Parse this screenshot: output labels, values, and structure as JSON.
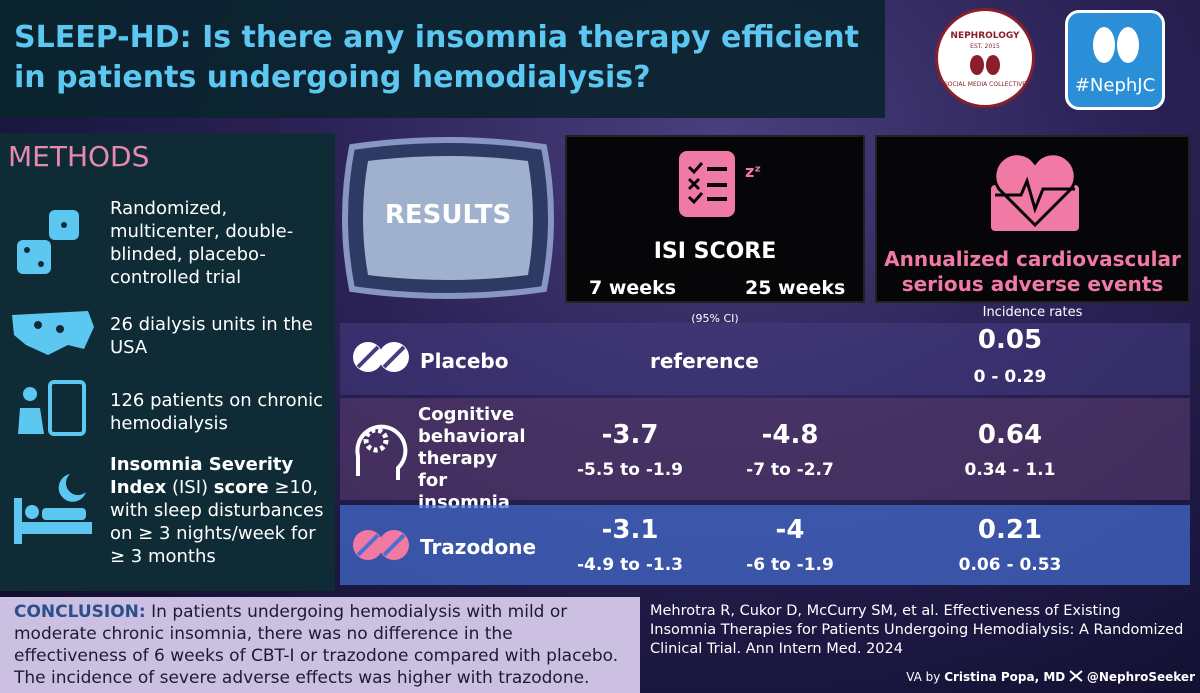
{
  "header": {
    "title": "SLEEP-HD: Is there any insomnia therapy efficient in patients undergoing hemodialysis?",
    "logo_top": "NEPHROLOGY",
    "logo_bottom": "SOCIAL MEDIA COLLECTIVE",
    "logo_est": "EST. 2015",
    "hashtag": "#NephJC"
  },
  "methods": {
    "heading": "METHODS",
    "items": [
      "Randomized, multicenter, double-blinded, placebo-controlled trial",
      "26 dialysis units in the USA",
      "126 patients on chronic hemodialysis"
    ],
    "isi": [
      "Insomnia Severity Index",
      "(ISI)",
      "score",
      "≥10, with sleep disturbances on ≥ 3 nights/week for ≥ 3 months"
    ]
  },
  "results": {
    "heading": "RESULTS",
    "isi": {
      "title": "ISI SCORE",
      "col1": "7 weeks",
      "col2": "25 weeks",
      "note": "(95% CI)"
    },
    "cv": {
      "title": "Annualized cardiovascular serious adverse events",
      "note": "Incidence rates"
    },
    "rows": [
      {
        "name": "Placebo",
        "isi": "reference",
        "cv": 0.05,
        "cv_ci": "0 - 0.29"
      },
      {
        "name": "Cognitive behavioral therapy for insomnia",
        "w7": -3.7,
        "w7_ci": "-5.5 to -1.9",
        "w25": -4.8,
        "w25_ci": "-7 to -2.7",
        "cv": 0.64,
        "cv_ci": "0.34 - 1.1"
      },
      {
        "name": "Trazodone",
        "w7": -3.1,
        "w7_ci": "-4.9 to -1.3",
        "w25": -4,
        "w25_ci": "-6 to -1.9",
        "cv": 0.21,
        "cv_ci": "0.06 - 0.53"
      }
    ]
  },
  "conclusion": {
    "label": "CONCLUSION:",
    "text": "In patients undergoing hemodialysis with mild or moderate chronic insomnia, there was no difference in the effectiveness of 6 weeks of CBT-I or trazodone compared with placebo. The incidence of severe adverse effects was higher with trazodone."
  },
  "citation": "Mehrotra R, Cukor D, McCurry SM, et al. Effectiveness of Existing Insomnia Therapies for Patients Undergoing Hemodialysis: A Randomized Clinical Trial. Ann Intern Med. 2024",
  "credit": {
    "prefix": "VA by",
    "author": "Cristina Popa, MD",
    "handle": "@NephroSeeker"
  }
}
